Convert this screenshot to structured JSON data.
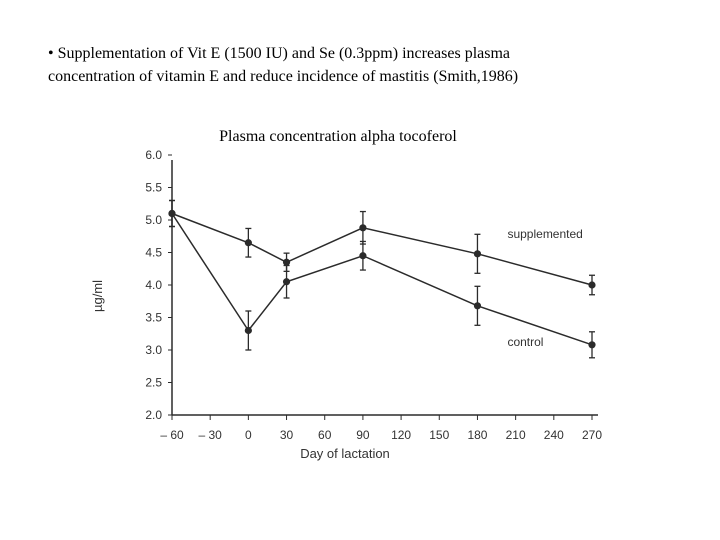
{
  "slide": {
    "line1": "• Supplementation of Vit E (1500 IU) and Se (0.3ppm) increases plasma",
    "line2": "concentration of  vitamin E and reduce incidence of mastitis (Smith,1986)"
  },
  "chart_data": {
    "type": "line",
    "title": "Plasma concentration alpha tocoferol",
    "xlabel": "Day of lactation",
    "ylabel": "µg/ml",
    "x_ticks": [
      -60,
      -30,
      0,
      30,
      60,
      90,
      120,
      150,
      180,
      210,
      240,
      270
    ],
    "x_tick_labels": [
      "– 60",
      "– 30",
      "0",
      "30",
      "60",
      "90",
      "120",
      "150",
      "180",
      "210",
      "240",
      "270"
    ],
    "y_ticks": [
      2.0,
      2.5,
      3.0,
      3.5,
      4.0,
      4.5,
      5.0,
      5.5,
      6.0
    ],
    "y_tick_labels": [
      "2.0",
      "2.5",
      "3.0",
      "3.5",
      "4.0",
      "4.5",
      "5.0",
      "5.5",
      "6.0"
    ],
    "xlim": [
      -60,
      270
    ],
    "ylim": [
      2.0,
      6.0
    ],
    "series": [
      {
        "name": "supplemented",
        "x": [
          -60,
          0,
          30,
          90,
          180,
          270
        ],
        "values": [
          5.1,
          4.65,
          4.35,
          4.88,
          4.48,
          4.0
        ],
        "err": [
          0.2,
          0.22,
          0.14,
          0.25,
          0.3,
          0.15
        ]
      },
      {
        "name": "control",
        "x": [
          -60,
          0,
          30,
          90,
          180,
          270
        ],
        "values": [
          5.1,
          3.3,
          4.05,
          4.45,
          3.68,
          3.08
        ],
        "err": [
          0.2,
          0.3,
          0.25,
          0.22,
          0.3,
          0.2
        ]
      }
    ],
    "colors": {
      "line": "#2b2b2b",
      "text": "#333333"
    }
  }
}
